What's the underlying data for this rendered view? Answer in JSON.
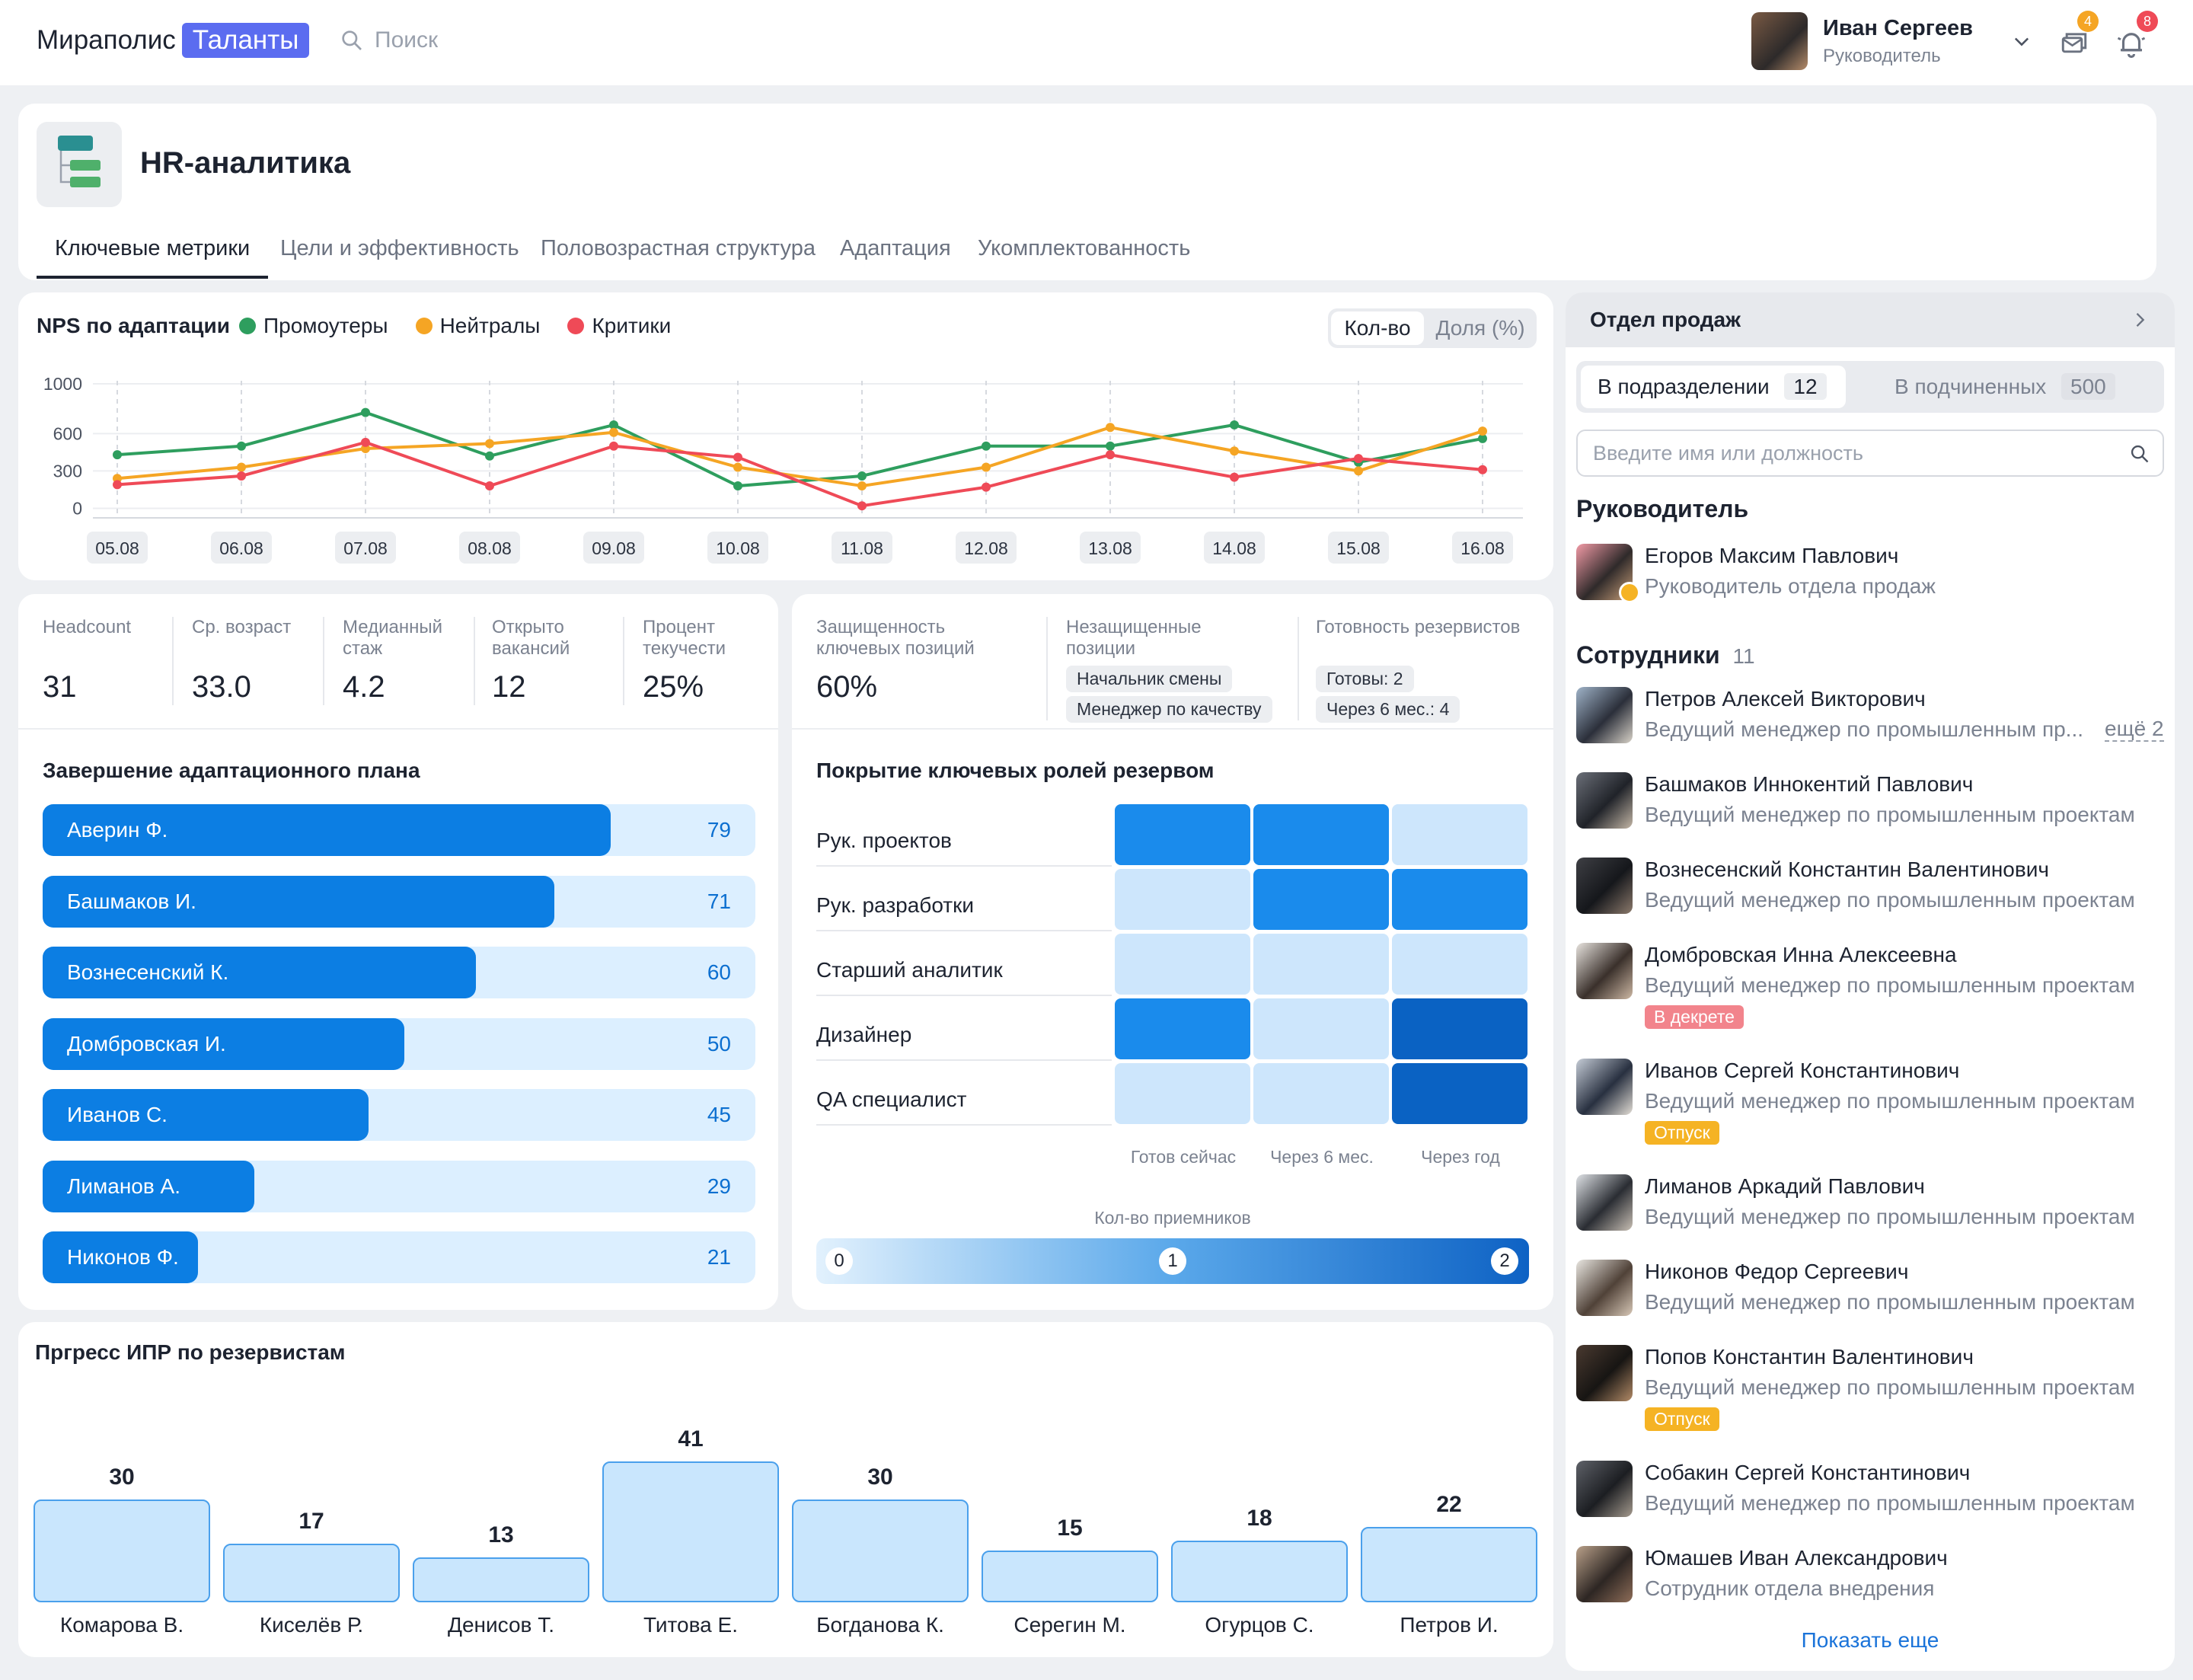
{
  "app": {
    "brand": "Мираполис",
    "brand_tag": "Таланты",
    "search_placeholder": "Поиск"
  },
  "user": {
    "name": "Иван Сергеев",
    "role": "Руководитель",
    "messages_count": "4",
    "notifications_count": "8"
  },
  "page": {
    "title": "HR-аналитика",
    "tabs": [
      "Ключевые метрики",
      "Цели и эффективность",
      "Половозрастная структура",
      "Адаптация",
      "Укомплектованность"
    ]
  },
  "nps": {
    "title": "NPS по адаптации",
    "legend": [
      "Промоутеры",
      "Нейтралы",
      "Критики"
    ],
    "toggle": [
      "Кол-во",
      "Доля (%)"
    ],
    "colors": {
      "promoters": "#2e9e5e",
      "neutrals": "#f5a524",
      "critics": "#ef4a57"
    }
  },
  "chart_data": {
    "type": "line",
    "x": [
      "05.08",
      "06.08",
      "07.08",
      "08.08",
      "09.08",
      "10.08",
      "11.08",
      "12.08",
      "13.08",
      "14.08",
      "15.08",
      "16.08"
    ],
    "y_ticks": [
      "1000",
      "600",
      "300",
      "0"
    ],
    "series": [
      {
        "name": "Промоутеры",
        "values": [
          430,
          500,
          770,
          420,
          670,
          180,
          260,
          500,
          500,
          670,
          370,
          560
        ]
      },
      {
        "name": "Нейтралы",
        "values": [
          240,
          330,
          480,
          520,
          610,
          330,
          180,
          330,
          650,
          460,
          300,
          620
        ]
      },
      {
        "name": "Критики",
        "values": [
          190,
          260,
          530,
          180,
          500,
          410,
          20,
          170,
          430,
          250,
          400,
          310
        ]
      }
    ],
    "ylim": [
      -40,
      1000
    ]
  },
  "metrics": [
    {
      "label": "Headcount",
      "value": "31"
    },
    {
      "label": "Ср. возраст",
      "value": "33.0"
    },
    {
      "label": "Медианный стаж",
      "value": "4.2"
    },
    {
      "label": "Открыто вакансий",
      "value": "12"
    },
    {
      "label": "Процент текучести",
      "value": "25%"
    }
  ],
  "key_positions": {
    "protected_label": "Защищенность ключевых позиций",
    "protected_value": "60%",
    "unprotected_label": "Незащищенные позиции",
    "unprotected_items": [
      "Начальник смены",
      "Менеджер по качеству"
    ],
    "readiness_label": "Готовность резервистов",
    "readiness_items": [
      "Готовы: 2",
      "Через 6 мес.: 4"
    ]
  },
  "adaptation": {
    "title": "Завершение адаптационного плана",
    "items": [
      {
        "name": "Аверин Ф.",
        "value": 79
      },
      {
        "name": "Башмаков И.",
        "value": 71
      },
      {
        "name": "Вознесенский К.",
        "value": 60
      },
      {
        "name": "Домбровская И.",
        "value": 50
      },
      {
        "name": "Иванов С.",
        "value": 45
      },
      {
        "name": "Лиманов А.",
        "value": 29
      },
      {
        "name": "Никонов Ф.",
        "value": 21
      }
    ]
  },
  "coverage": {
    "title": "Покрытие ключевых ролей резервом",
    "rows": [
      "Рук. проектов",
      "Рук. разработки",
      "Старший аналитик",
      "Дизайнер",
      "QA специалист"
    ],
    "columns": [
      "Готов сейчас",
      "Через 6 мес.",
      "Через год"
    ],
    "values": [
      [
        1,
        1,
        0
      ],
      [
        0,
        1,
        1
      ],
      [
        0,
        0,
        0
      ],
      [
        1,
        0,
        2
      ],
      [
        0,
        0,
        2
      ]
    ],
    "scale_title": "Кол-во приемников",
    "scale_ticks": [
      "0",
      "1",
      "2"
    ]
  },
  "ipr": {
    "title": "Пргресс ИПР по резервистам",
    "items": [
      {
        "name": "Комарова В.",
        "value": 30
      },
      {
        "name": "Киселёв Р.",
        "value": 17
      },
      {
        "name": "Денисов Т.",
        "value": 13
      },
      {
        "name": "Титова Е.",
        "value": 41
      },
      {
        "name": "Богданова К.",
        "value": 30
      },
      {
        "name": "Серегин М.",
        "value": 15
      },
      {
        "name": "Огурцов С.",
        "value": 18
      },
      {
        "name": "Петров И.",
        "value": 22
      }
    ]
  },
  "sidebar": {
    "department": "Отдел продаж",
    "tab_in_unit": "В подразделении",
    "tab_in_unit_count": "12",
    "tab_subordinates": "В подчиненных",
    "tab_subordinates_count": "500",
    "search_placeholder": "Введите имя или должность",
    "head_title": "Руководитель",
    "head": {
      "name": "Егоров Максим Павлович",
      "role": "Руководитель отдела продаж"
    },
    "employees_title": "Сотрудники",
    "employees_count": "11",
    "employees": [
      {
        "name": "Петров Алексей Викторович",
        "role": "Ведущий менеджер по промышленным пр...",
        "more": "ещё 2",
        "status": ""
      },
      {
        "name": "Башмаков Иннокентий Павлович",
        "role": "Ведущий менеджер по промышленным проектам",
        "status": ""
      },
      {
        "name": "Вознесенский Константин Валентинович",
        "role": "Ведущий менеджер по промышленным проектам",
        "status": ""
      },
      {
        "name": "Домбровская Инна Алексеевна",
        "role": "Ведущий менеджер по промышленным проектам",
        "status": "В декрете"
      },
      {
        "name": "Иванов Сергей Константинович",
        "role": "Ведущий менеджер по промышленным проектам",
        "status": "Отпуск"
      },
      {
        "name": "Лиманов Аркадий Павлович",
        "role": "Ведущий менеджер по промышленным проектам",
        "status": ""
      },
      {
        "name": "Никонов Федор Сергеевич",
        "role": "Ведущий менеджер по промышленным проектам",
        "status": ""
      },
      {
        "name": "Попов Константин Валентинович",
        "role": "Ведущий менеджер по промышленным проектам",
        "status": "Отпуск"
      },
      {
        "name": "Собакин Сергей Константинович",
        "role": "Ведущий менеджер по промышленным проектам",
        "status": ""
      },
      {
        "name": "Юмашев Иван Александрович",
        "role": "Сотрудник отдела внедрения",
        "status": ""
      }
    ],
    "show_more": "Показать еще"
  }
}
